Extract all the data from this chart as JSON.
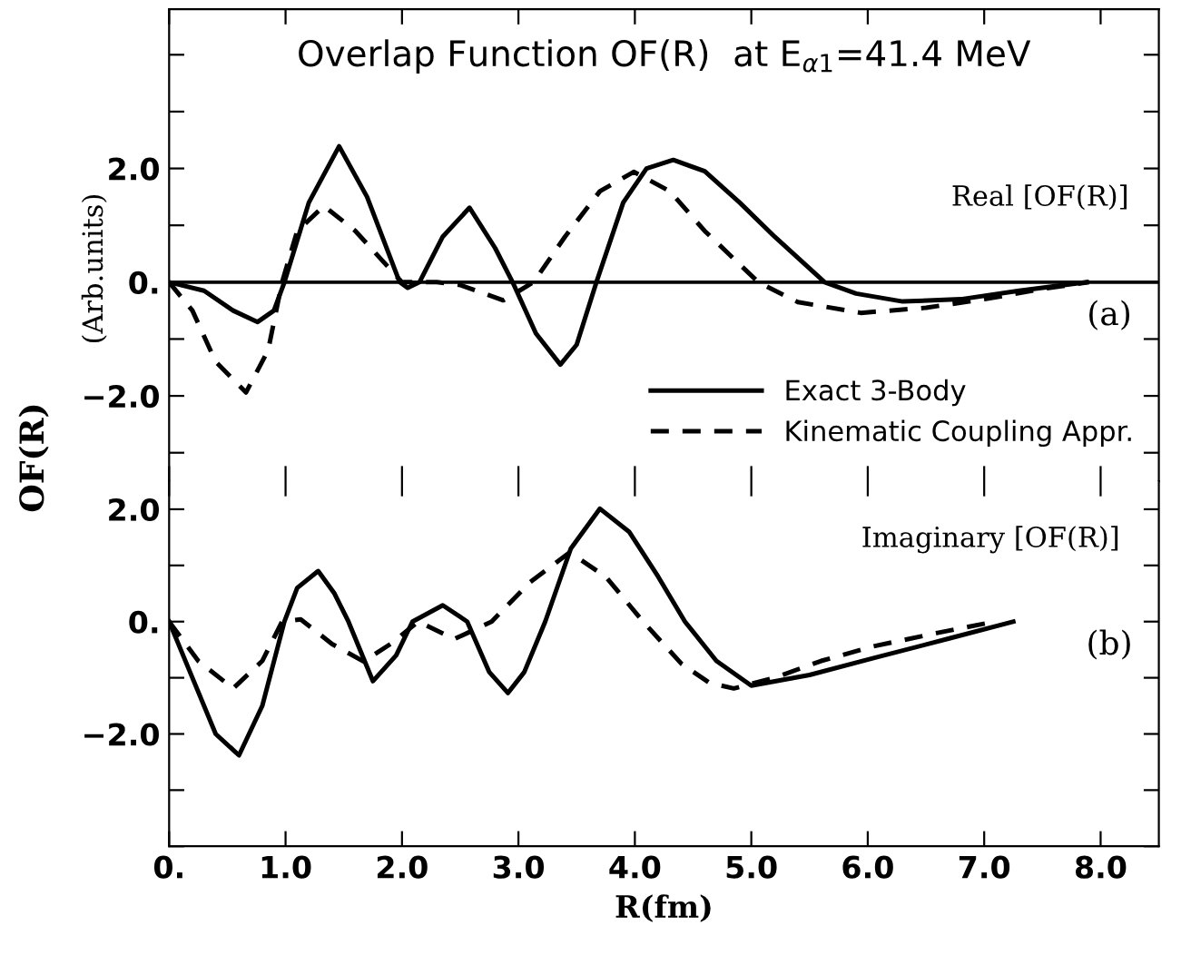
{
  "chart_data": [
    {
      "type": "line",
      "title": "Overlap Function OF(R)  at E$_{α1}$=41.4 MeV",
      "ylabel": "OF(R)",
      "annotations": [
        "(Arb.units)",
        "Real [OF(R)]",
        "(a)"
      ],
      "xlim": [
        0,
        8.5
      ],
      "ylim": [
        -3.5,
        4.8
      ],
      "yticks": [
        {
          "value": -3,
          "label": null
        },
        {
          "value": -2,
          "label": "−2.0"
        },
        {
          "value": -1,
          "label": null
        },
        {
          "value": 0,
          "label": "0."
        },
        {
          "value": 1,
          "label": null
        },
        {
          "value": 2,
          "label": "2.0"
        },
        {
          "value": 3,
          "label": null
        },
        {
          "value": 4,
          "label": null
        }
      ],
      "xticks": [
        0,
        1,
        2,
        3,
        4,
        5,
        6,
        7,
        8
      ],
      "tick_labels": "y",
      "grid": false,
      "ref_lines": [
        {
          "axis": "y",
          "value": 0
        }
      ],
      "legend": "bottom right",
      "marker": "none",
      "series": [
        {
          "name": "Exact 3-Body",
          "color": "#000000",
          "line_style": "solid",
          "x": [
            0,
            0.3,
            0.55,
            0.76,
            0.9,
            0.99,
            1.2,
            1.46,
            1.7,
            1.98,
            2.05,
            2.15,
            2.35,
            2.58,
            2.8,
            2.95,
            3.15,
            3.36,
            3.5,
            3.67,
            3.9,
            4.1,
            4.33,
            4.6,
            4.9,
            5.2,
            5.63,
            5.9,
            6.3,
            6.8,
            7.3,
            7.88
          ],
          "values": [
            0,
            -0.15,
            -0.5,
            -0.7,
            -0.5,
            0,
            1.4,
            2.39,
            1.5,
            0,
            -0.1,
            0,
            0.8,
            1.31,
            0.6,
            0,
            -0.9,
            -1.45,
            -1.1,
            0,
            1.4,
            2.0,
            2.15,
            1.95,
            1.4,
            0.8,
            0,
            -0.2,
            -0.34,
            -0.3,
            -0.15,
            0
          ]
        },
        {
          "name": "Kinematic Coupling Appr.",
          "color": "#000000",
          "line_style": "dashed",
          "x": [
            0,
            0.2,
            0.4,
            0.66,
            0.85,
            0.97,
            1.1,
            1.33,
            1.6,
            2.0,
            2.3,
            2.5,
            2.87,
            3.13,
            3.4,
            3.7,
            3.99,
            4.3,
            4.6,
            5.06,
            5.4,
            5.94,
            6.5,
            7.0,
            7.5,
            7.9
          ],
          "values": [
            0,
            -0.5,
            -1.4,
            -1.94,
            -1.2,
            0,
            0.9,
            1.34,
            0.9,
            0,
            0,
            -0.05,
            -0.32,
            0,
            0.8,
            1.6,
            1.94,
            1.6,
            0.9,
            0,
            -0.35,
            -0.54,
            -0.45,
            -0.3,
            -0.12,
            0
          ]
        }
      ]
    },
    {
      "type": "line",
      "xlabel": "R(fm)",
      "annotations": [
        "Imaginary [OF(R)]",
        "(b)"
      ],
      "xlim": [
        0,
        8.5
      ],
      "ylim": [
        -4,
        2.5
      ],
      "yticks": [
        {
          "value": -4,
          "label": null
        },
        {
          "value": -3,
          "label": null
        },
        {
          "value": -2,
          "label": "−2.0"
        },
        {
          "value": -1,
          "label": null
        },
        {
          "value": 0,
          "label": "0."
        },
        {
          "value": 1,
          "label": null
        },
        {
          "value": 2,
          "label": "2.0"
        }
      ],
      "xticks": [
        {
          "value": 0,
          "label": "0."
        },
        {
          "value": 1,
          "label": "1.0"
        },
        {
          "value": 2,
          "label": "2.0"
        },
        {
          "value": 3,
          "label": "3.0"
        },
        {
          "value": 4,
          "label": "4.0"
        },
        {
          "value": 5,
          "label": "5.0"
        },
        {
          "value": 6,
          "label": "6.0"
        },
        {
          "value": 7,
          "label": "7.0"
        },
        {
          "value": 8,
          "label": "8.0"
        }
      ],
      "grid": false,
      "marker": "none",
      "series": [
        {
          "color": "#000000",
          "line_style": "solid",
          "x": [
            0,
            0.2,
            0.4,
            0.6,
            0.8,
            0.99,
            1.1,
            1.28,
            1.42,
            1.54,
            1.75,
            1.95,
            2.09,
            2.35,
            2.56,
            2.75,
            2.91,
            3.05,
            3.23,
            3.45,
            3.7,
            3.95,
            4.2,
            4.43,
            4.7,
            5.0,
            5.5,
            6.05,
            6.7,
            7.25
          ],
          "values": [
            0,
            -1.0,
            -2.0,
            -2.38,
            -1.5,
            0,
            0.6,
            0.9,
            0.5,
            0,
            -1.06,
            -0.6,
            0,
            0.29,
            0,
            -0.9,
            -1.27,
            -0.9,
            0,
            1.3,
            2.01,
            1.6,
            0.8,
            0,
            -0.7,
            -1.14,
            -0.95,
            -0.65,
            -0.3,
            0
          ]
        },
        {
          "color": "#000000",
          "line_style": "dashed",
          "x": [
            0,
            0.25,
            0.55,
            0.8,
            0.97,
            1.13,
            1.4,
            1.67,
            1.9,
            2.14,
            2.45,
            2.77,
            3.1,
            3.44,
            3.75,
            4.07,
            4.4,
            4.64,
            4.85,
            5.2,
            5.6,
            6.05,
            6.6,
            7.09
          ],
          "values": [
            0,
            -0.7,
            -1.19,
            -0.7,
            0,
            0.04,
            -0.4,
            -0.71,
            -0.4,
            0,
            -0.31,
            0,
            0.7,
            1.23,
            0.8,
            0,
            -0.75,
            -1.09,
            -1.19,
            -1.0,
            -0.7,
            -0.44,
            -0.2,
            0
          ]
        }
      ]
    }
  ]
}
